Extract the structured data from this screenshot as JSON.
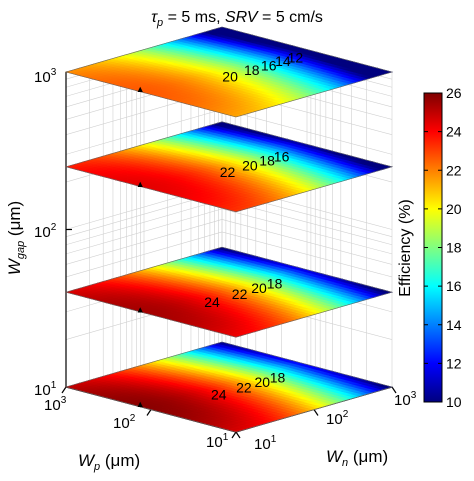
{
  "chart_data": {
    "type": "heatmap",
    "title": {
      "tau_symbol": "τ",
      "tau_sub": "p",
      "tau_value": " = 5 ms, ",
      "srv_label": "SRV",
      "srv_value": " = 5 cm/s"
    },
    "axes": {
      "z": {
        "label_main": "W",
        "label_sub": "gap",
        "label_unit": " (μm)",
        "ticks": [
          {
            "base": "10",
            "exp": "1"
          },
          {
            "base": "10",
            "exp": "2"
          },
          {
            "base": "10",
            "exp": "3"
          }
        ],
        "scale": "log"
      },
      "x": {
        "label_main": "W",
        "label_sub": "p",
        "label_unit": " (μm)",
        "ticks": [
          {
            "base": "10",
            "exp": "3"
          },
          {
            "base": "10",
            "exp": "2"
          },
          {
            "base": "10",
            "exp": "1"
          }
        ],
        "scale": "log"
      },
      "y": {
        "label_main": "W",
        "label_sub": "n",
        "label_unit": " (μm)",
        "ticks": [
          {
            "base": "10",
            "exp": "1"
          },
          {
            "base": "10",
            "exp": "2"
          },
          {
            "base": "10",
            "exp": "3"
          }
        ],
        "scale": "log"
      }
    },
    "colorbar": {
      "label": "Efficiency (%)",
      "min": 10,
      "max": 26,
      "ticks": [
        "10",
        "12",
        "14",
        "16",
        "18",
        "20",
        "22",
        "24",
        "26"
      ],
      "colormap": "jet"
    },
    "slices": [
      {
        "w_gap": 1000,
        "contour_labels": [
          "20",
          "18",
          "16",
          "14",
          "12"
        ],
        "max_marker": "▲"
      },
      {
        "w_gap": 250,
        "contour_labels": [
          "22",
          "20",
          "18",
          "16"
        ],
        "max_marker": "▲"
      },
      {
        "w_gap": 40,
        "contour_labels": [
          "24",
          "22",
          "20",
          "18"
        ],
        "max_marker": "▲"
      },
      {
        "w_gap": 10,
        "contour_labels": [
          "24",
          "22",
          "20",
          "18"
        ],
        "max_marker": "▲"
      }
    ],
    "grid": true
  },
  "colors": {
    "jet": [
      "#00007f",
      "#0000ff",
      "#0080ff",
      "#00ffff",
      "#80ff80",
      "#ffff00",
      "#ff8000",
      "#ff0000",
      "#7f0000"
    ]
  }
}
